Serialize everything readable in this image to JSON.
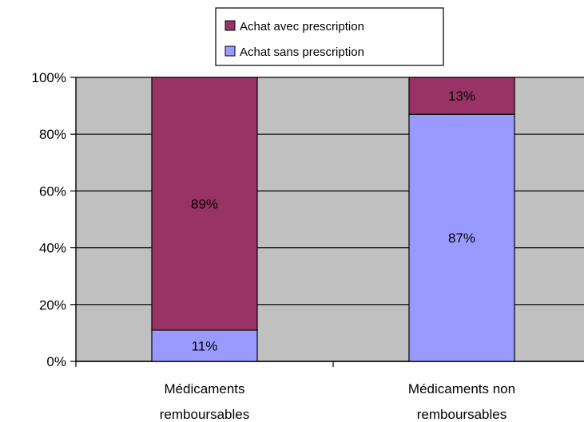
{
  "chart_data": {
    "type": "bar",
    "stacked": true,
    "percent_stacked": true,
    "categories": [
      "Médicaments remboursables",
      "Médicaments non remboursables"
    ],
    "category_lines": [
      [
        "Médicaments",
        "remboursables"
      ],
      [
        "Médicaments non",
        "remboursables"
      ]
    ],
    "series": [
      {
        "name": "Achat sans prescription",
        "values": [
          11,
          87
        ],
        "labels": [
          "11%",
          "87%"
        ],
        "color": "#9999FF"
      },
      {
        "name": "Achat avec prescription",
        "values": [
          89,
          13
        ],
        "labels": [
          "89%",
          "13%"
        ],
        "color": "#993366"
      }
    ],
    "legend_order": [
      "Achat avec prescription",
      "Achat sans prescription"
    ],
    "y_ticks": [
      "0%",
      "20%",
      "40%",
      "60%",
      "80%",
      "100%"
    ],
    "ylim": [
      0,
      100
    ],
    "grid": true,
    "plot_background": "#C0C0C0",
    "legend_position": "top",
    "title": "",
    "xlabel": "",
    "ylabel": ""
  }
}
